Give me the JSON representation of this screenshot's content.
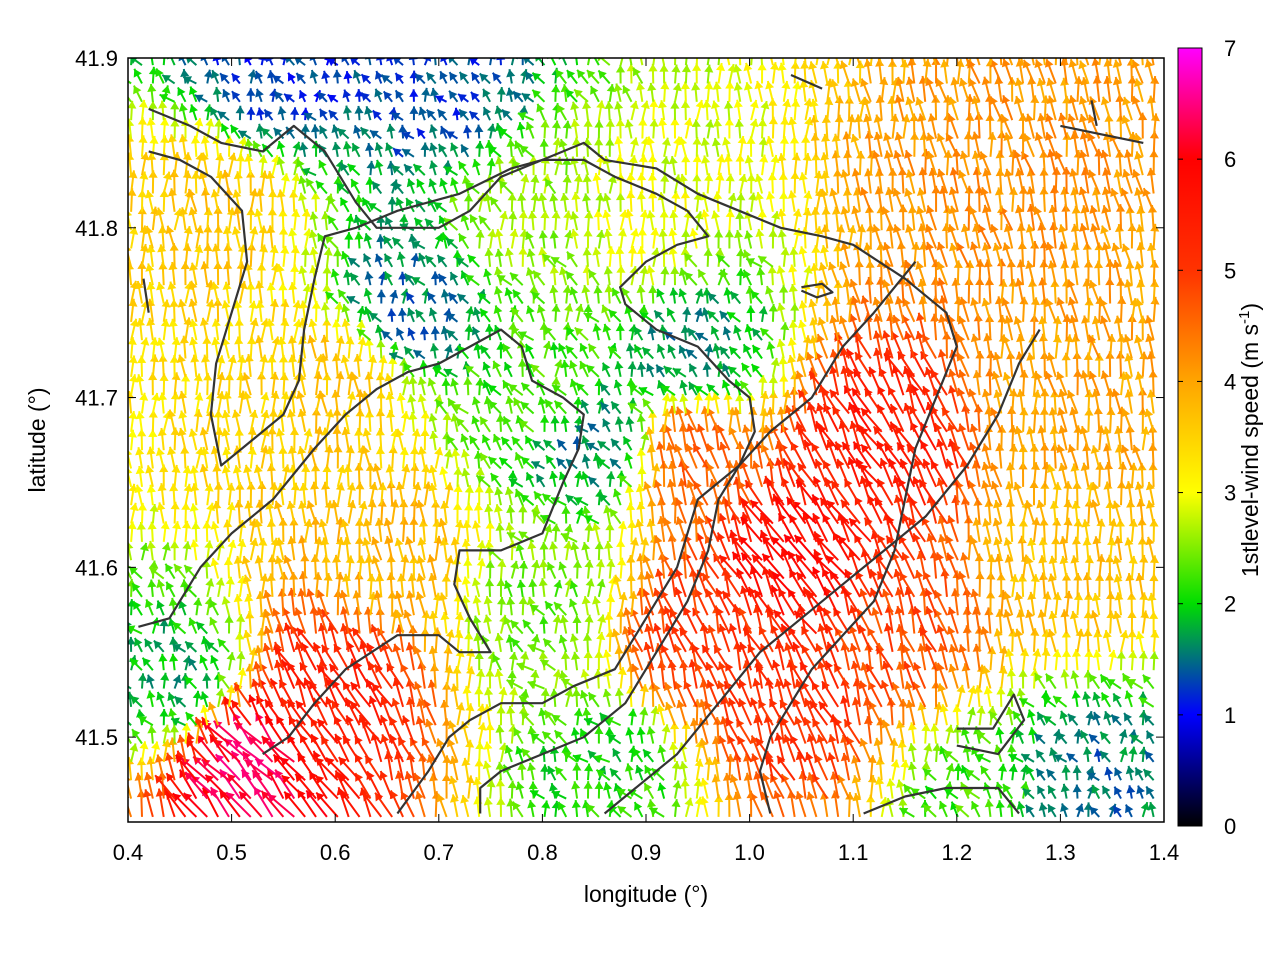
{
  "chart_data": {
    "type": "vector-field",
    "xlabel": "longitude (°)",
    "ylabel": "latitude (°)",
    "xlim": [
      0.4,
      1.4
    ],
    "ylim": [
      41.45,
      41.9
    ],
    "x_ticks": [
      "0.4",
      "0.5",
      "0.6",
      "0.7",
      "0.8",
      "0.9",
      "1.0",
      "1.1",
      "1.2",
      "1.3",
      "1.4"
    ],
    "y_ticks": [
      "41.5",
      "41.6",
      "41.7",
      "41.8",
      "41.9"
    ],
    "colorbar": {
      "label_main": "1stlevel-wind speed (m s",
      "label_sup": "-1",
      "label_end": ")",
      "range": [
        0,
        7
      ],
      "ticks": [
        "0",
        "1",
        "2",
        "3",
        "4",
        "5",
        "6",
        "7"
      ],
      "palette": [
        "#000000",
        "#0000ff",
        "#00dd00",
        "#ffff00",
        "#ffa500",
        "#ff0000",
        "#ff00ff"
      ]
    },
    "grid": false,
    "wind_field": {
      "regions": [
        {
          "lon": 0.55,
          "lat": 41.89,
          "speed": 1.2
        },
        {
          "lon": 0.7,
          "lat": 41.88,
          "speed": 1.3
        },
        {
          "lon": 0.68,
          "lat": 41.75,
          "speed": 1.5
        },
        {
          "lon": 0.79,
          "lat": 41.8,
          "speed": 2.6
        },
        {
          "lon": 0.8,
          "lat": 41.7,
          "speed": 2.2
        },
        {
          "lon": 0.85,
          "lat": 41.67,
          "speed": 1.6
        },
        {
          "lon": 0.95,
          "lat": 41.72,
          "speed": 1.6
        },
        {
          "lon": 0.9,
          "lat": 41.8,
          "speed": 2.9
        },
        {
          "lon": 0.8,
          "lat": 41.57,
          "speed": 2.4
        },
        {
          "lon": 0.86,
          "lat": 41.48,
          "speed": 2.0
        },
        {
          "lon": 1.22,
          "lat": 41.47,
          "speed": 2.2
        },
        {
          "lon": 1.32,
          "lat": 41.47,
          "speed": 1.5
        },
        {
          "lon": 0.45,
          "lat": 41.53,
          "speed": 1.8
        },
        {
          "lon": 0.48,
          "lat": 41.8,
          "speed": 3.6
        },
        {
          "lon": 0.6,
          "lat": 41.7,
          "speed": 3.6
        },
        {
          "lon": 0.65,
          "lat": 41.6,
          "speed": 3.8
        },
        {
          "lon": 1.2,
          "lat": 41.8,
          "speed": 4.2
        },
        {
          "lon": 1.3,
          "lat": 41.7,
          "speed": 4.0
        },
        {
          "lon": 1.3,
          "lat": 41.6,
          "speed": 3.7
        },
        {
          "lon": 1.05,
          "lat": 41.6,
          "speed": 5.8
        },
        {
          "lon": 1.13,
          "lat": 41.67,
          "speed": 5.5
        },
        {
          "lon": 1.05,
          "lat": 41.52,
          "speed": 5.2
        },
        {
          "lon": 0.95,
          "lat": 41.55,
          "speed": 5.0
        },
        {
          "lon": 1.15,
          "lat": 41.55,
          "speed": 4.8
        },
        {
          "lon": 0.52,
          "lat": 41.48,
          "speed": 6.3
        },
        {
          "lon": 0.6,
          "lat": 41.52,
          "speed": 5.4
        },
        {
          "lon": 0.95,
          "lat": 41.66,
          "speed": 4.6
        }
      ]
    },
    "contours": [
      [
        [
          0.42,
          41.87
        ],
        [
          0.46,
          41.86
        ],
        [
          0.49,
          41.85
        ],
        [
          0.53,
          41.845
        ],
        [
          0.56,
          41.86
        ],
        [
          0.59,
          41.845
        ],
        [
          0.62,
          41.815
        ],
        [
          0.64,
          41.8
        ],
        [
          0.7,
          41.8
        ],
        [
          0.73,
          41.81
        ],
        [
          0.76,
          41.83
        ],
        [
          0.8,
          41.84
        ],
        [
          0.84,
          41.85
        ],
        [
          0.86,
          41.84
        ],
        [
          0.91,
          41.835
        ],
        [
          0.95,
          41.82
        ],
        [
          0.99,
          41.81
        ],
        [
          1.03,
          41.8
        ],
        [
          1.07,
          41.795
        ],
        [
          1.1,
          41.79
        ],
        [
          1.15,
          41.77
        ],
        [
          1.19,
          41.75
        ],
        [
          1.2,
          41.73
        ],
        [
          1.18,
          41.7
        ],
        [
          1.16,
          41.67
        ],
        [
          1.15,
          41.64
        ],
        [
          1.14,
          41.61
        ],
        [
          1.12,
          41.58
        ],
        [
          1.09,
          41.56
        ],
        [
          1.06,
          41.54
        ],
        [
          1.04,
          41.52
        ],
        [
          1.02,
          41.5
        ],
        [
          1.01,
          41.48
        ],
        [
          1.02,
          41.455
        ]
      ],
      [
        [
          0.42,
          41.845
        ],
        [
          0.45,
          41.84
        ],
        [
          0.48,
          41.83
        ],
        [
          0.51,
          41.81
        ],
        [
          0.515,
          41.78
        ],
        [
          0.5,
          41.75
        ],
        [
          0.485,
          41.72
        ],
        [
          0.48,
          41.69
        ],
        [
          0.49,
          41.66
        ],
        [
          0.51,
          41.67
        ],
        [
          0.55,
          41.69
        ],
        [
          0.565,
          41.71
        ],
        [
          0.57,
          41.74
        ],
        [
          0.58,
          41.77
        ],
        [
          0.59,
          41.795
        ],
        [
          0.62,
          41.8
        ],
        [
          0.66,
          41.81
        ],
        [
          0.72,
          41.82
        ],
        [
          0.77,
          41.835
        ],
        [
          0.8,
          41.84
        ],
        [
          0.84,
          41.84
        ],
        [
          0.87,
          41.83
        ],
        [
          0.91,
          41.82
        ],
        [
          0.94,
          41.81
        ],
        [
          0.96,
          41.795
        ],
        [
          0.93,
          41.79
        ],
        [
          0.9,
          41.78
        ],
        [
          0.875,
          41.765
        ],
        [
          0.88,
          41.755
        ],
        [
          0.91,
          41.74
        ],
        [
          0.95,
          41.73
        ],
        [
          0.98,
          41.71
        ],
        [
          1.0,
          41.7
        ],
        [
          1.005,
          41.68
        ],
        [
          0.99,
          41.66
        ],
        [
          0.97,
          41.64
        ],
        [
          0.96,
          41.61
        ],
        [
          0.94,
          41.58
        ],
        [
          0.91,
          41.55
        ],
        [
          0.88,
          41.52
        ],
        [
          0.84,
          41.5
        ],
        [
          0.8,
          41.49
        ],
        [
          0.76,
          41.48
        ],
        [
          0.74,
          41.47
        ],
        [
          0.74,
          41.455
        ]
      ],
      [
        [
          0.41,
          41.565
        ],
        [
          0.44,
          41.57
        ],
        [
          0.47,
          41.6
        ],
        [
          0.5,
          41.62
        ],
        [
          0.54,
          41.64
        ],
        [
          0.58,
          41.67
        ],
        [
          0.61,
          41.69
        ],
        [
          0.64,
          41.705
        ],
        [
          0.67,
          41.715
        ],
        [
          0.7,
          41.72
        ],
        [
          0.73,
          41.73
        ],
        [
          0.76,
          41.74
        ],
        [
          0.78,
          41.73
        ],
        [
          0.79,
          41.71
        ],
        [
          0.82,
          41.7
        ],
        [
          0.84,
          41.69
        ],
        [
          0.835,
          41.67
        ],
        [
          0.82,
          41.65
        ],
        [
          0.8,
          41.62
        ],
        [
          0.76,
          41.61
        ],
        [
          0.72,
          41.61
        ],
        [
          0.715,
          41.59
        ],
        [
          0.73,
          41.57
        ],
        [
          0.75,
          41.55
        ],
        [
          0.72,
          41.55
        ],
        [
          0.7,
          41.56
        ],
        [
          0.66,
          41.56
        ],
        [
          0.61,
          41.54
        ],
        [
          0.58,
          41.52
        ],
        [
          0.555,
          41.5
        ],
        [
          0.53,
          41.49
        ]
      ],
      [
        [
          0.66,
          41.455
        ],
        [
          0.69,
          41.48
        ],
        [
          0.71,
          41.5
        ],
        [
          0.73,
          41.51
        ],
        [
          0.76,
          41.52
        ],
        [
          0.8,
          41.52
        ],
        [
          0.83,
          41.53
        ],
        [
          0.87,
          41.54
        ],
        [
          0.9,
          41.57
        ],
        [
          0.93,
          41.6
        ],
        [
          0.95,
          41.64
        ],
        [
          0.99,
          41.66
        ],
        [
          1.02,
          41.68
        ],
        [
          1.06,
          41.7
        ],
        [
          1.09,
          41.73
        ],
        [
          1.12,
          41.75
        ],
        [
          1.16,
          41.78
        ]
      ],
      [
        [
          0.86,
          41.455
        ],
        [
          0.89,
          41.47
        ],
        [
          0.93,
          41.49
        ],
        [
          0.97,
          41.52
        ],
        [
          1.01,
          41.55
        ],
        [
          1.05,
          41.57
        ],
        [
          1.09,
          41.59
        ],
        [
          1.13,
          41.61
        ],
        [
          1.17,
          41.63
        ],
        [
          1.21,
          41.66
        ],
        [
          1.24,
          41.69
        ],
        [
          1.26,
          41.72
        ],
        [
          1.28,
          41.74
        ]
      ],
      [
        [
          1.11,
          41.455
        ],
        [
          1.15,
          41.465
        ],
        [
          1.19,
          41.47
        ],
        [
          1.24,
          41.47
        ],
        [
          1.26,
          41.455
        ]
      ],
      [
        [
          1.2,
          41.505
        ],
        [
          1.235,
          41.505
        ],
        [
          1.255,
          41.525
        ],
        [
          1.265,
          41.51
        ],
        [
          1.24,
          41.49
        ],
        [
          1.2,
          41.495
        ]
      ],
      [
        [
          1.05,
          41.765
        ],
        [
          1.07,
          41.767
        ],
        [
          1.08,
          41.762
        ],
        [
          1.065,
          41.759
        ],
        [
          1.05,
          41.763
        ]
      ],
      [
        [
          0.415,
          41.77
        ],
        [
          0.42,
          41.75
        ]
      ],
      [
        [
          1.3,
          41.86
        ],
        [
          1.34,
          41.855
        ],
        [
          1.38,
          41.85
        ]
      ],
      [
        [
          1.33,
          41.875
        ],
        [
          1.335,
          41.86
        ]
      ],
      [
        [
          1.04,
          41.89
        ],
        [
          1.07,
          41.882
        ]
      ]
    ]
  }
}
